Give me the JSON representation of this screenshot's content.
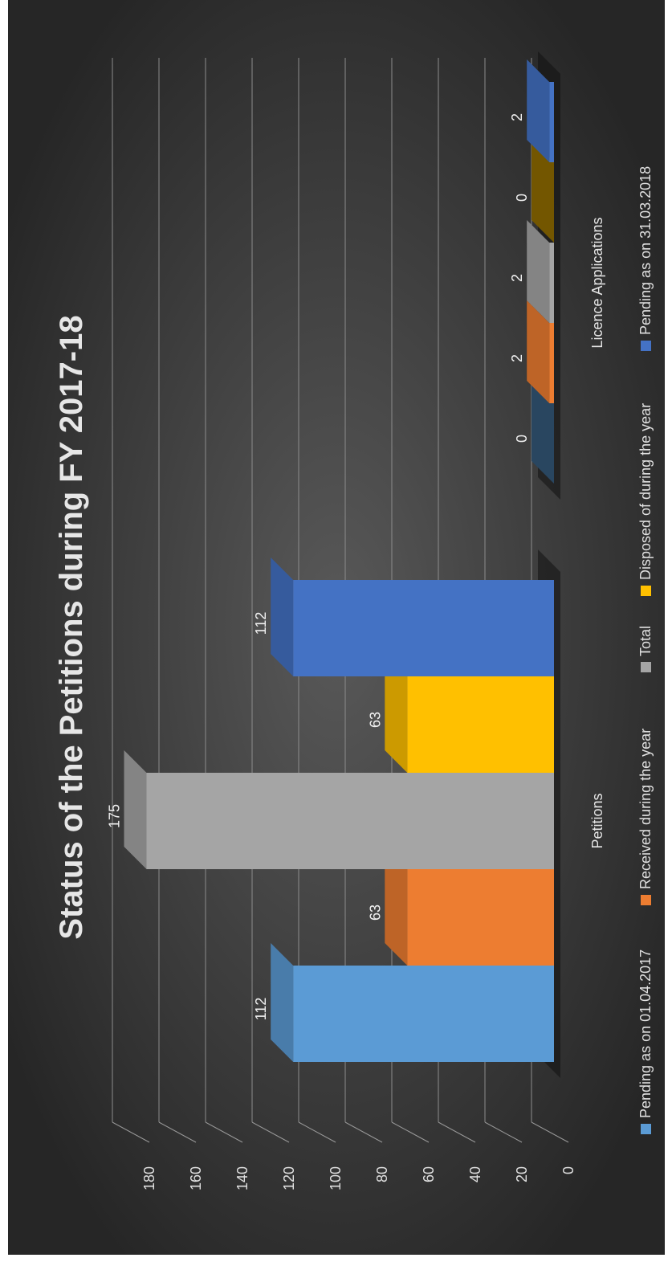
{
  "chart_data": {
    "type": "bar",
    "title": "Status of the Petitions during FY 2017-18",
    "xlabel": "",
    "ylabel": "",
    "ylim": [
      0,
      180
    ],
    "yticks": [
      "0",
      "20",
      "40",
      "60",
      "80",
      "100",
      "120",
      "140",
      "160",
      "180"
    ],
    "grid": true,
    "three_d": true,
    "orientation": "rotated 90° counter-clockwise",
    "legend_position": "bottom",
    "categories": [
      "Petitions",
      "Licence Applications"
    ],
    "series": [
      {
        "name": "Pending as on 01.04.2017",
        "color": "#5b9bd5",
        "values": [
          112,
          0
        ]
      },
      {
        "name": "Received during the year",
        "color": "#ed7d31",
        "values": [
          63,
          2
        ]
      },
      {
        "name": "Total",
        "color": "#a5a5a5",
        "values": [
          175,
          2
        ]
      },
      {
        "name": "Disposed of during the year",
        "color": "#ffc000",
        "values": [
          63,
          0
        ]
      },
      {
        "name": "Pending as on 31.03.2018",
        "color": "#4472c4",
        "values": [
          112,
          2
        ]
      }
    ],
    "data_labels": [
      [
        "112",
        "0"
      ],
      [
        "63",
        "2"
      ],
      [
        "175",
        "2"
      ],
      [
        "63",
        "0"
      ],
      [
        "112",
        "2"
      ]
    ]
  }
}
